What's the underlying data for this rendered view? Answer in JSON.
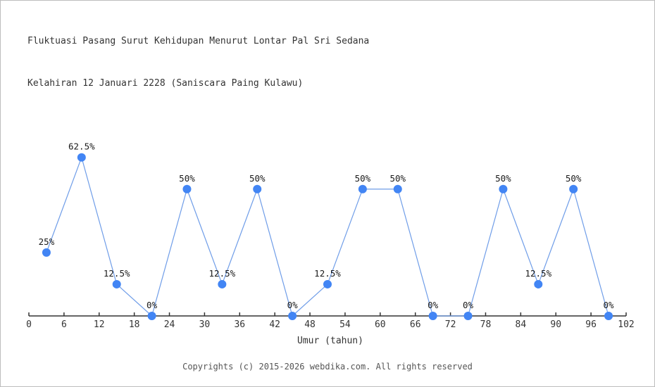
{
  "title": {
    "line1": "Fluktuasi Pasang Surut Kehidupan Menurut Lontar Pal Sri Sedana",
    "line2": "Kelahiran 12 Januari 2228 (Saniscara Paing Kulawu)"
  },
  "chart_data": {
    "type": "line",
    "title": "Fluktuasi Pasang Surut Kehidupan Menurut Lontar Pal Sri Sedana Kelahiran 12 Januari 2228 (Saniscara Paing Kulawu)",
    "x": [
      3,
      9,
      15,
      21,
      27,
      33,
      39,
      45,
      51,
      57,
      63,
      69,
      75,
      81,
      87,
      93,
      99
    ],
    "values": [
      25,
      62.5,
      12.5,
      0,
      50,
      12.5,
      50,
      0,
      12.5,
      50,
      50,
      0,
      0,
      50,
      12.5,
      50,
      0
    ],
    "point_labels": [
      "25%",
      "62.5%",
      "12.5%",
      "0%",
      "50%",
      "12.5%",
      "50%",
      "0%",
      "12.5%",
      "50%",
      "50%",
      "0%",
      "0%",
      "50%",
      "12.5%",
      "50%",
      "0%"
    ],
    "xlabel": "Umur (tahun)",
    "ylabel": "",
    "xlim": [
      0,
      102
    ],
    "ylim": [
      0,
      100
    ],
    "x_ticks": [
      0,
      6,
      12,
      18,
      24,
      30,
      36,
      42,
      48,
      54,
      60,
      66,
      72,
      78,
      84,
      90,
      96,
      102
    ],
    "grid": false,
    "legend": false,
    "colors": {
      "line": "#6f9de8",
      "marker": "#4285f4",
      "axis": "#333333",
      "tick_label": "#333333",
      "point_label": "#1a1a1a"
    }
  },
  "footer": {
    "copyright": "Copyrights (c) 2015-2026 webdika.com. All rights reserved"
  }
}
